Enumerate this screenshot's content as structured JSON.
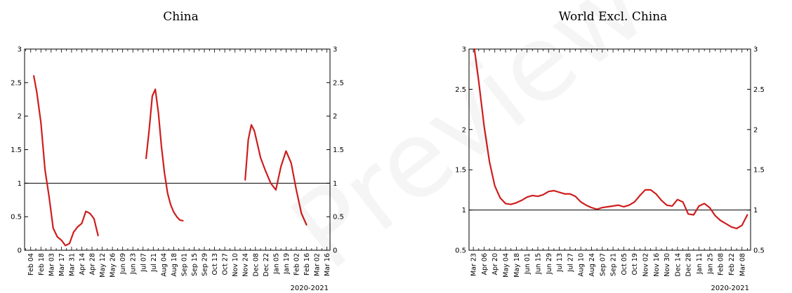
{
  "chart_data": [
    {
      "type": "line",
      "title": "China",
      "xlabel": "2020-2021",
      "ylim": [
        0,
        3
      ],
      "yticks": [
        "0",
        "0.5",
        "1",
        "1.5",
        "2",
        "2.5",
        "3"
      ],
      "yticks_values": [
        0,
        0.5,
        1,
        1.5,
        2,
        2.5,
        3
      ],
      "xticks": [
        "Feb 04",
        "Feb 18",
        "Mar 03",
        "Mar 17",
        "Mar 31",
        "Apr 14",
        "Apr 28",
        "May 12",
        "May 26",
        "Jun 09",
        "Jun 23",
        "Jul 07",
        "Jul 21",
        "Aug 04",
        "Aug 18",
        "Sep 01",
        "Sep 15",
        "Sep 29",
        "Oct 13",
        "Oct 27",
        "Nov 10",
        "Nov 24",
        "Dec 08",
        "Dec 22",
        "Jan 05",
        "Jan 19",
        "Feb 02",
        "Feb 16",
        "Mar 02",
        "Mar 16"
      ],
      "reference_line": 1,
      "series_color": "#d62020",
      "segments": [
        {
          "x": [
            0.3,
            0.6,
            1.0,
            1.4,
            1.8,
            2.2,
            2.6,
            3.0,
            3.4,
            3.8,
            4.2,
            4.6,
            5.0,
            5.4,
            5.8,
            6.2,
            6.6
          ],
          "y": [
            2.6,
            2.35,
            1.9,
            1.2,
            0.8,
            0.33,
            0.2,
            0.15,
            0.07,
            0.1,
            0.27,
            0.35,
            0.4,
            0.58,
            0.55,
            0.47,
            0.22
          ]
        },
        {
          "x": [
            11.3,
            11.6,
            11.9,
            12.2,
            12.5,
            12.8,
            13.1,
            13.4,
            13.7,
            14.0,
            14.3,
            14.6,
            14.9
          ],
          "y": [
            1.37,
            1.8,
            2.3,
            2.4,
            2.05,
            1.55,
            1.15,
            0.85,
            0.68,
            0.57,
            0.5,
            0.45,
            0.44
          ]
        },
        {
          "x": [
            21.0,
            21.3,
            21.6,
            21.9,
            22.2,
            22.5,
            23.0,
            23.5,
            24.0,
            24.5,
            25.0,
            25.5,
            26.0,
            26.5,
            27.0
          ],
          "y": [
            1.05,
            1.65,
            1.87,
            1.78,
            1.58,
            1.38,
            1.18,
            1.0,
            0.9,
            1.25,
            1.48,
            1.3,
            0.9,
            0.55,
            0.38
          ]
        }
      ]
    },
    {
      "type": "line",
      "title": "World Excl. China",
      "xlabel": "2020-2021",
      "ylim": [
        0.5,
        3
      ],
      "yticks": [
        "0.5",
        "1",
        "1.5",
        "2",
        "2.5",
        "3"
      ],
      "yticks_values": [
        0.5,
        1,
        1.5,
        2,
        2.5,
        3
      ],
      "xticks": [
        "Mar 23",
        "Apr 06",
        "Apr 20",
        "May 04",
        "May 18",
        "Jun 01",
        "Jun 15",
        "Jun 29",
        "Jul 13",
        "Jul 27",
        "Aug 10",
        "Aug 24",
        "Sep 07",
        "Sep 21",
        "Oct 05",
        "Oct 19",
        "Nov 02",
        "Nov 16",
        "Nov 30",
        "Dec 14",
        "Dec 28",
        "Jan 11",
        "Jan 25",
        "Feb 08",
        "Feb 22",
        "Mar 08"
      ],
      "reference_line": 1,
      "series_color": "#d62020",
      "segments": [
        {
          "x": [
            0.1,
            0.5,
            1.0,
            1.5,
            2.0,
            2.5,
            3.0,
            3.5,
            4.0,
            4.5,
            5.0,
            5.5,
            6.0,
            6.5,
            7.0,
            7.5,
            8.0,
            8.5,
            9.0,
            9.5,
            10.0,
            10.5,
            11.0,
            11.5,
            12.0,
            12.5,
            13.0,
            13.5,
            14.0,
            14.5,
            15.0,
            15.5,
            16.0,
            16.5,
            17.0,
            17.5,
            18.0,
            18.5,
            19.0,
            19.5,
            20.0,
            20.5,
            21.0,
            21.5,
            22.0,
            22.5,
            23.0,
            23.5,
            24.0,
            24.5,
            25.0,
            25.5
          ],
          "y": [
            3.0,
            2.6,
            2.05,
            1.6,
            1.3,
            1.15,
            1.08,
            1.07,
            1.09,
            1.12,
            1.16,
            1.18,
            1.17,
            1.19,
            1.23,
            1.24,
            1.22,
            1.2,
            1.2,
            1.17,
            1.1,
            1.06,
            1.03,
            1.01,
            1.03,
            1.04,
            1.05,
            1.06,
            1.04,
            1.06,
            1.1,
            1.18,
            1.25,
            1.25,
            1.2,
            1.12,
            1.06,
            1.05,
            1.13,
            1.1,
            0.95,
            0.94,
            1.05,
            1.08,
            1.03,
            0.93,
            0.87,
            0.83,
            0.79,
            0.77,
            0.81,
            0.94
          ]
        }
      ]
    }
  ]
}
